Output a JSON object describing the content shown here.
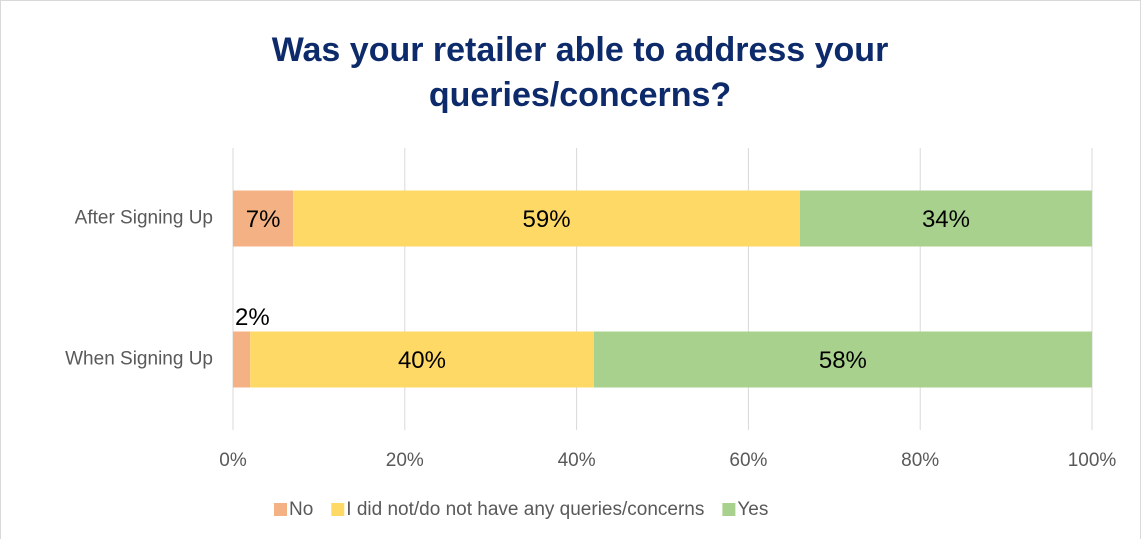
{
  "chart_data": {
    "type": "stacked_barh",
    "title": [
      "Was your retailer able to address your",
      "queries/concerns?"
    ],
    "categories": [
      "After Signing Up",
      "When Signing Up"
    ],
    "series": [
      {
        "name": "No",
        "color": "#f4b183",
        "values": [
          7,
          2
        ],
        "value_labels": [
          "7%",
          "2%"
        ]
      },
      {
        "name": "I did not/do not have any queries/concerns",
        "color": "#ffd966",
        "values": [
          59,
          40
        ],
        "value_labels": [
          "59%",
          "40%"
        ]
      },
      {
        "name": "Yes",
        "color": "#a9d18e",
        "values": [
          34,
          58
        ],
        "value_labels": [
          "34%",
          "58%"
        ]
      }
    ],
    "xlim": [
      0,
      100
    ],
    "xticks": [
      {
        "value": 0,
        "label": "0%"
      },
      {
        "value": 20,
        "label": "20%"
      },
      {
        "value": 40,
        "label": "40%"
      },
      {
        "value": 60,
        "label": "60%"
      },
      {
        "value": 80,
        "label": "80%"
      },
      {
        "value": 100,
        "label": "100%"
      }
    ],
    "grid": true,
    "legend": "bottom"
  }
}
